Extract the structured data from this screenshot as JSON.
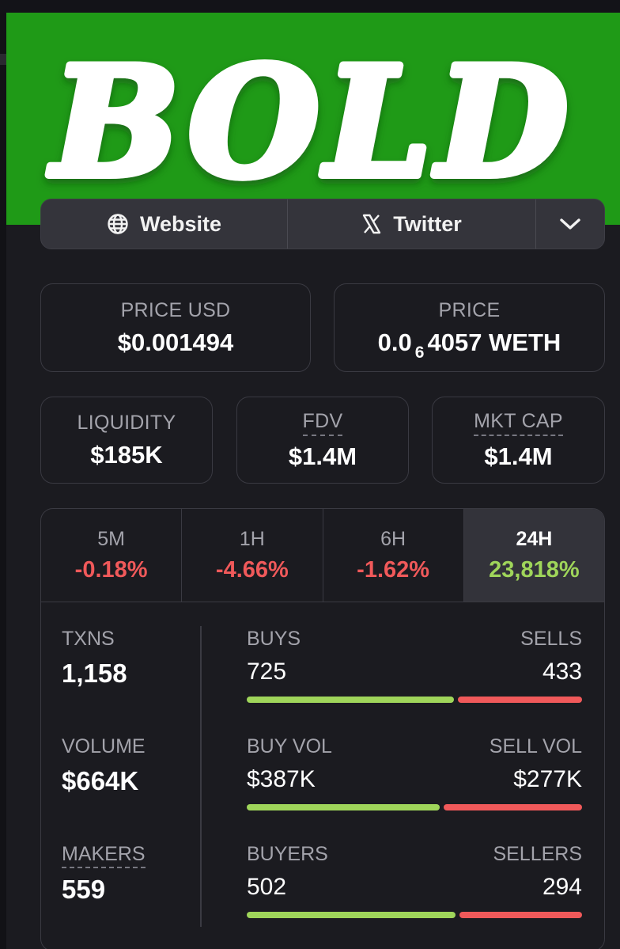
{
  "banner": {
    "logo_text": "BOLD",
    "bg_color": "#1f9a17"
  },
  "links": {
    "website_label": "Website",
    "twitter_label": "Twitter",
    "website_icon": "globe-icon",
    "twitter_icon": "x-logo-icon",
    "more_icon": "chevron-down-icon"
  },
  "price_usd": {
    "label": "PRICE USD",
    "value": "$0.001494"
  },
  "price": {
    "label": "PRICE",
    "prefix": "0.0",
    "subscript": "6",
    "suffix": "4057 WETH"
  },
  "liquidity": {
    "label": "LIQUIDITY",
    "value": "$185K"
  },
  "fdv": {
    "label": "FDV",
    "value": "$1.4M"
  },
  "mkt_cap": {
    "label": "MKT CAP",
    "value": "$1.4M"
  },
  "tabs": [
    {
      "name": "5M",
      "change": "-0.18%"
    },
    {
      "name": "1H",
      "change": "-4.66%"
    },
    {
      "name": "6H",
      "change": "-1.62%"
    },
    {
      "name": "24H",
      "change": "23,818%"
    }
  ],
  "active_tab": "24H",
  "stats": {
    "txns": {
      "label": "TXNS",
      "value": "1,158",
      "left_label": "BUYS",
      "right_label": "SELLS",
      "left_value": "725",
      "right_value": "433",
      "left_share": 0.626
    },
    "volume": {
      "label": "VOLUME",
      "value": "$664K",
      "left_label": "BUY VOL",
      "right_label": "SELL VOL",
      "left_value": "$387K",
      "right_value": "$277K",
      "left_share": 0.583
    },
    "makers": {
      "label": "MAKERS",
      "value": "559",
      "left_label": "BUYERS",
      "right_label": "SELLERS",
      "left_value": "502",
      "right_value": "294",
      "left_share": 0.631
    }
  },
  "colors": {
    "positive": "#9fd55a",
    "negative": "#f0595a"
  }
}
